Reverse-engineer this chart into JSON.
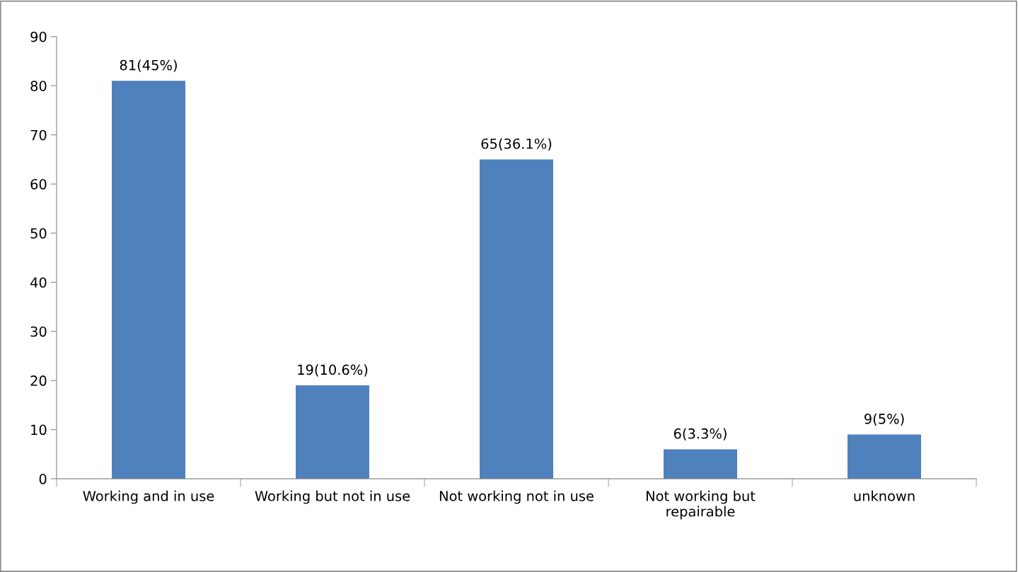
{
  "chart_data": {
    "type": "bar",
    "categories": [
      "Working and in use",
      "Working but not in use",
      "Not working not in use",
      "Not working but\nrepairable",
      "unknown"
    ],
    "values": [
      81,
      19,
      65,
      6,
      9
    ],
    "value_labels": [
      "81(45%)",
      "19(10.6%)",
      "65(36.1%)",
      "6(3.3%)",
      "9(5%)"
    ],
    "color": "#4f81bd",
    "ylim": [
      0,
      90
    ],
    "yticks": [
      0,
      10,
      20,
      30,
      40,
      50,
      60,
      70,
      80,
      90
    ],
    "grid": false,
    "legend": false
  }
}
